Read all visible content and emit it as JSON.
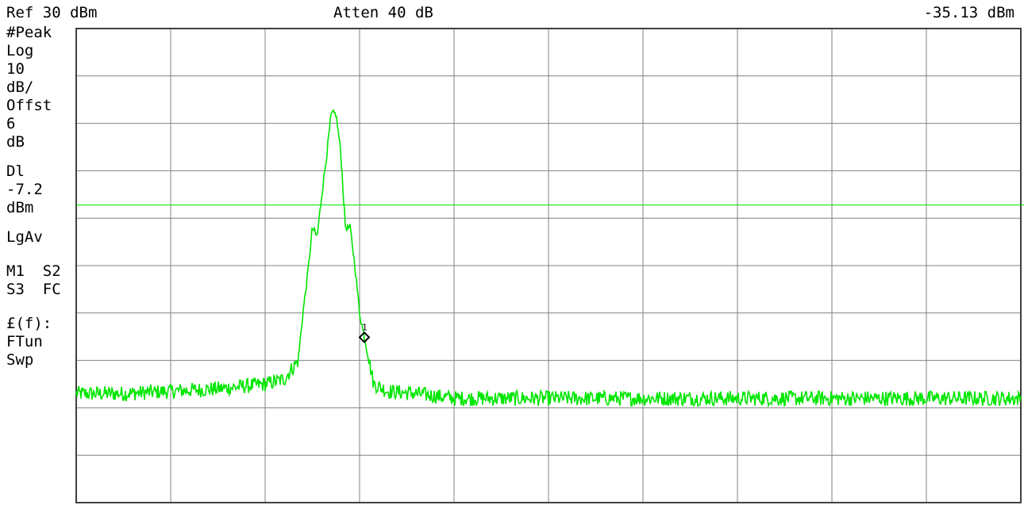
{
  "header": {
    "ref_level": "Ref 30 dBm",
    "attenuation": "Atten 40 dB",
    "marker_readout": "-35.13 dBm"
  },
  "annotations": {
    "detector": "#Peak",
    "scale_type": "Log",
    "scale_value": "10",
    "scale_unit": "dB/",
    "offset_label": "Offst",
    "offset_value": "6",
    "offset_unit": "dB",
    "display_line_label": "Dl",
    "display_line_value": "-7.2",
    "display_line_unit": "dBm",
    "averaging": "LgAv",
    "markers_1": "M1  S2",
    "markers_2": "S3  FC",
    "func": "£(f):",
    "tune": "FTun",
    "sweep": "Swp"
  },
  "marker": {
    "label": "1"
  },
  "colors": {
    "trace": "#00e600",
    "grid": "#808080",
    "frame": "#404040",
    "background": "#ffffff"
  },
  "chart_data": {
    "type": "line",
    "title": "",
    "xlabel": "",
    "ylabel": "",
    "x_divisions": 10,
    "y_divisions": 10,
    "y_unit": "dBm",
    "ylim": [
      -70,
      30
    ],
    "xlim": [
      0,
      10
    ],
    "grid": true,
    "display_line_dbm": -7.2,
    "marker": {
      "x_div": 3.05,
      "amplitude_dbm": -35.13
    },
    "series": [
      {
        "x": [
          0,
          0.5,
          1.0,
          1.5,
          2.0,
          2.2,
          2.35,
          2.4,
          2.45,
          2.5,
          2.55,
          2.6,
          2.65,
          2.7,
          2.75,
          2.8,
          2.85,
          2.9,
          2.95,
          3.0,
          3.05,
          3.1,
          3.15,
          3.3,
          3.6,
          4.0,
          5.0,
          6.0,
          7.0,
          8.0,
          9.0,
          10.0
        ],
        "values": [
          -47,
          -47,
          -46.5,
          -46,
          -45,
          -44,
          -40,
          -30,
          -22,
          -12,
          -14,
          -5,
          3,
          12,
          12,
          4,
          -12,
          -12,
          -20,
          -30,
          -35,
          -40,
          -45,
          -46.5,
          -47,
          -48,
          -48,
          -48,
          -48,
          -48,
          -48,
          -48
        ]
      }
    ]
  }
}
